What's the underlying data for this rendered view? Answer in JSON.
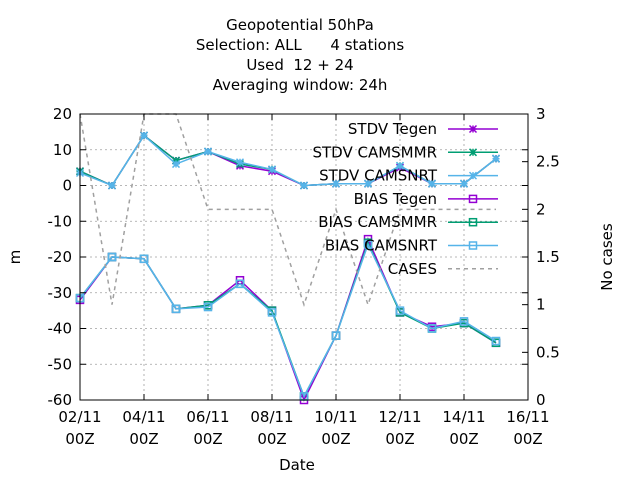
{
  "title_lines": [
    "Geopotential 50hPa",
    "Selection: ALL      4 stations",
    "Used  12 + 24",
    "Averaging window: 24h"
  ],
  "chart_data": {
    "type": "line",
    "xlabel": "Date",
    "ylabel": "m",
    "y2label": "No cases",
    "ylim": [
      -60,
      20
    ],
    "y2lim": [
      0,
      3
    ],
    "yticks": [
      "20",
      "10",
      "0",
      "-10",
      "-20",
      "-30",
      "-40",
      "-50",
      "-60"
    ],
    "y2ticks": [
      "3",
      "2.5",
      "2",
      "1.5",
      "1",
      "0.5",
      "0"
    ],
    "xticks": [
      {
        "x": 0,
        "line1": "02/11",
        "line2": "00Z"
      },
      {
        "x": 2,
        "line1": "04/11",
        "line2": "00Z"
      },
      {
        "x": 4,
        "line1": "06/11",
        "line2": "00Z"
      },
      {
        "x": 6,
        "line1": "08/11",
        "line2": "00Z"
      },
      {
        "x": 8,
        "line1": "10/11",
        "line2": "00Z"
      },
      {
        "x": 10,
        "line1": "12/11",
        "line2": "00Z"
      },
      {
        "x": 12,
        "line1": "14/11",
        "line2": "00Z"
      },
      {
        "x": 14,
        "line1": "16/11",
        "line2": "00Z"
      }
    ],
    "grid": true,
    "legend_position": "top-right",
    "x": [
      0,
      1,
      2,
      3,
      4,
      5,
      6,
      7,
      8,
      9,
      10,
      11,
      12,
      13
    ],
    "series": [
      {
        "name": "STDV Tegen",
        "color": "#9400d3",
        "marker": "star",
        "axis": "y1",
        "values": [
          4,
          0,
          14,
          7,
          9.5,
          5.5,
          4,
          0,
          0.5,
          0.5,
          5,
          0.5,
          0.5,
          7.5
        ]
      },
      {
        "name": "STDV CAMSMMR",
        "color": "#009e73",
        "marker": "star",
        "axis": "y1",
        "values": [
          4,
          0,
          14,
          7,
          9.5,
          6,
          4.5,
          0,
          0.5,
          0.5,
          5.5,
          0.5,
          0.5,
          7.5
        ]
      },
      {
        "name": "STDV CAMSNRT",
        "color": "#56b4e9",
        "marker": "star",
        "axis": "y1",
        "values": [
          3.5,
          0,
          14,
          6,
          9.5,
          6.5,
          4.5,
          0,
          0.5,
          0.5,
          5.5,
          0.5,
          0.5,
          7.5
        ]
      },
      {
        "name": "BIAS Tegen",
        "color": "#9400d3",
        "marker": "square",
        "axis": "y1",
        "values": [
          -32,
          -20,
          -20.5,
          -34.5,
          -33.5,
          -26.5,
          -35,
          -60,
          -42,
          -15,
          -35.5,
          -39.5,
          -38.5,
          -44
        ]
      },
      {
        "name": "BIAS CAMSMMR",
        "color": "#009e73",
        "marker": "square",
        "axis": "y1",
        "values": [
          -31.5,
          -20,
          -20.5,
          -34.5,
          -33.5,
          -27.5,
          -35,
          -59,
          -42,
          -16,
          -35.5,
          -40,
          -38.5,
          -44
        ]
      },
      {
        "name": "BIAS CAMSNRT",
        "color": "#56b4e9",
        "marker": "square",
        "axis": "y1",
        "values": [
          -31.5,
          -20,
          -20.5,
          -34.5,
          -34,
          -27.5,
          -35.5,
          -59,
          -42,
          -16.5,
          -35,
          -40,
          -38,
          -43.5
        ]
      },
      {
        "name": "CASES",
        "color": "#a0a0a0",
        "marker": "none",
        "dashed": true,
        "axis": "y2",
        "x": [
          0,
          0.5,
          1,
          2,
          3,
          4,
          5,
          6,
          7,
          7.5,
          8,
          9,
          10,
          11,
          12,
          13
        ],
        "values": [
          3,
          2,
          1,
          3,
          3,
          2,
          2,
          2,
          1,
          1.5,
          2,
          1,
          2,
          2,
          2,
          2
        ]
      }
    ]
  }
}
